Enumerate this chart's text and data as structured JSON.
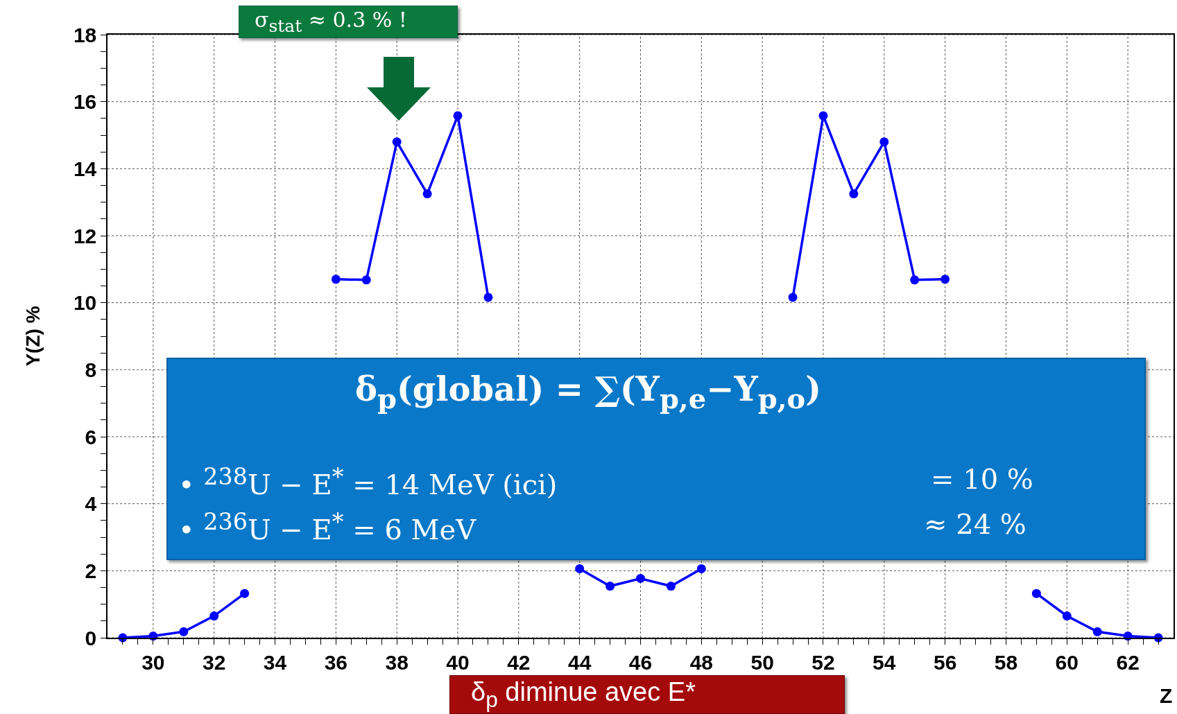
{
  "chart_data": {
    "type": "line",
    "xlabel": "Z",
    "ylabel": "Y(Z) %",
    "x": [
      29,
      30,
      31,
      32,
      33,
      34,
      35,
      36,
      37,
      38,
      39,
      40,
      41,
      42,
      43,
      44,
      45,
      46,
      47,
      48,
      49,
      50,
      51,
      52,
      53,
      54,
      55,
      56,
      57,
      58,
      59,
      60,
      61,
      62,
      63
    ],
    "series": [
      {
        "color": "#0000ff",
        "values": [
          0.0,
          0.05,
          0.18,
          0.65,
          1.32,
          null,
          null,
          10.7,
          10.68,
          14.8,
          13.25,
          15.58,
          10.16,
          null,
          null,
          2.06,
          1.54,
          1.77,
          1.54,
          2.06,
          null,
          null,
          10.16,
          15.58,
          13.25,
          14.8,
          10.68,
          10.7,
          null,
          null,
          1.32,
          0.65,
          0.18,
          0.05,
          0.0
        ]
      }
    ],
    "xlim": [
      28.5,
      63.5
    ],
    "xticks": [
      30,
      32,
      34,
      36,
      38,
      40,
      42,
      44,
      46,
      48,
      50,
      52,
      54,
      56,
      58,
      60,
      62,
      {
        "value": 29,
        "label": null
      },
      {
        "value": 29.5,
        "label": null
      },
      {
        "value": 30.5,
        "label": null
      },
      {
        "value": 31,
        "label": null
      },
      {
        "value": 31.5,
        "label": null
      },
      {
        "value": 32.5,
        "label": null
      },
      {
        "value": 33,
        "label": null
      },
      {
        "value": 33.5,
        "label": null
      },
      {
        "value": 34.5,
        "label": null
      },
      {
        "value": 35,
        "label": null
      },
      {
        "value": 35.5,
        "label": null
      },
      {
        "value": 36.5,
        "label": null
      },
      {
        "value": 37,
        "label": null
      },
      {
        "value": 37.5,
        "label": null
      },
      {
        "value": 38.5,
        "label": null
      },
      {
        "value": 39,
        "label": null
      },
      {
        "value": 39.5,
        "label": null
      },
      {
        "value": 40.5,
        "label": null
      },
      {
        "value": 41,
        "label": null
      },
      {
        "value": 41.5,
        "label": null
      },
      {
        "value": 42.5,
        "label": null
      },
      {
        "value": 43,
        "label": null
      },
      {
        "value": 43.5,
        "label": null
      },
      {
        "value": 44.5,
        "label": null
      },
      {
        "value": 45,
        "label": null
      },
      {
        "value": 45.5,
        "label": null
      },
      {
        "value": 46.5,
        "label": null
      },
      {
        "value": 47,
        "label": null
      },
      {
        "value": 47.5,
        "label": null
      },
      {
        "value": 48.5,
        "label": null
      },
      {
        "value": 49,
        "label": null
      },
      {
        "value": 49.5,
        "label": null
      },
      {
        "value": 50.5,
        "label": null
      },
      {
        "value": 51,
        "label": null
      },
      {
        "value": 51.5,
        "label": null
      },
      {
        "value": 52.5,
        "label": null
      },
      {
        "value": 53,
        "label": null
      },
      {
        "value": 53.5,
        "label": null
      },
      {
        "value": 54.5,
        "label": null
      },
      {
        "value": 55,
        "label": null
      },
      {
        "value": 55.5,
        "label": null
      },
      {
        "value": 56.5,
        "label": null
      },
      {
        "value": 57,
        "label": null
      },
      {
        "value": 57.5,
        "label": null
      },
      {
        "value": 58.5,
        "label": null
      },
      {
        "value": 59,
        "label": null
      },
      {
        "value": 59.5,
        "label": null
      },
      {
        "value": 60.5,
        "label": null
      },
      {
        "value": 61,
        "label": null
      },
      {
        "value": 61.5,
        "label": null
      },
      {
        "value": 62.5,
        "label": null
      },
      {
        "value": 63,
        "label": null
      }
    ],
    "ylim": [
      0,
      18
    ],
    "yticks": [
      0,
      2,
      4,
      6,
      8,
      10,
      12,
      14,
      16,
      18,
      {
        "value": 0.5,
        "label": null
      },
      {
        "value": 1,
        "label": null
      },
      {
        "value": 1.5,
        "label": null
      },
      {
        "value": 2.5,
        "label": null
      },
      {
        "value": 3,
        "label": null
      },
      {
        "value": 3.5,
        "label": null
      },
      {
        "value": 4.5,
        "label": null
      },
      {
        "value": 5,
        "label": null
      },
      {
        "value": 5.5,
        "label": null
      },
      {
        "value": 6.5,
        "label": null
      },
      {
        "value": 7,
        "label": null
      },
      {
        "value": 7.5,
        "label": null
      },
      {
        "value": 8.5,
        "label": null
      },
      {
        "value": 9,
        "label": null
      },
      {
        "value": 9.5,
        "label": null
      },
      {
        "value": 10.5,
        "label": null
      },
      {
        "value": 11,
        "label": null
      },
      {
        "value": 11.5,
        "label": null
      },
      {
        "value": 12.5,
        "label": null
      },
      {
        "value": 13,
        "label": null
      },
      {
        "value": 13.5,
        "label": null
      },
      {
        "value": 14.5,
        "label": null
      },
      {
        "value": 15,
        "label": null
      },
      {
        "value": 15.5,
        "label": null
      },
      {
        "value": 16.5,
        "label": null
      },
      {
        "value": 17,
        "label": null
      },
      {
        "value": 17.5,
        "label": null
      }
    ],
    "grid": true,
    "marker": "circle",
    "line_style": "solid",
    "annotations": [
      "σ$_{stat}$ ≈ 0.3 % !",
      "δ$_{p}$(global) = ∑(Y$_{p,e}$−Y$_{p,o}$)",
      "•  $^{238}$U  −  E$^{*}$ = 14 MeV (ici)",
      "= 10 %",
      "•  $^{236}$U  −  E$^{*}$ = 6 MeV",
      "≈ 24 %",
      "δ$_{p}$ diminue avec E*"
    ]
  }
}
